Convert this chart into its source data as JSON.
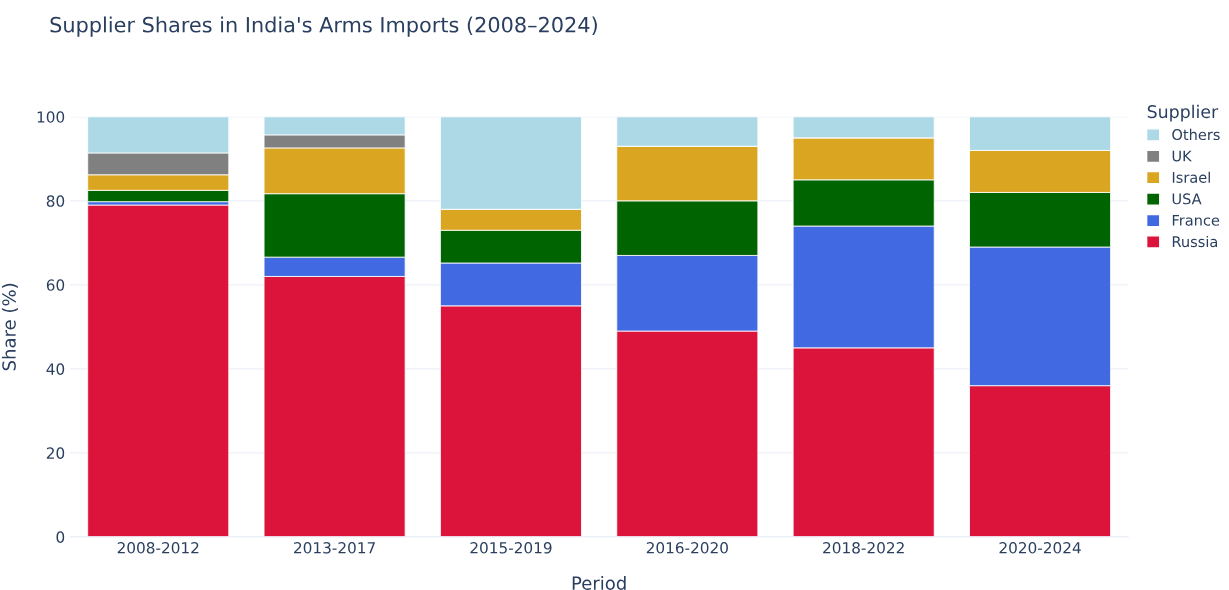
{
  "chart_data": {
    "type": "bar",
    "title": "Supplier Shares in India's Arms Imports (2008–2024)",
    "xlabel": "Period",
    "ylabel": "Share (%)",
    "legend_title": "Supplier",
    "categories": [
      "2008-2012",
      "2013-2017",
      "2015-2019",
      "2016-2020",
      "2018-2022",
      "2020-2024"
    ],
    "stacked": true,
    "series": [
      {
        "name": "Russia",
        "color": "#dc143c",
        "values": [
          79,
          62,
          55,
          49,
          45,
          36
        ]
      },
      {
        "name": "France",
        "color": "#4169e1",
        "values": [
          0.8,
          4.6,
          10.2,
          18,
          29,
          33
        ]
      },
      {
        "name": "USA",
        "color": "#006400",
        "values": [
          2.7,
          15.1,
          7.8,
          13,
          11,
          13
        ]
      },
      {
        "name": "Israel",
        "color": "#daa520",
        "values": [
          3.7,
          10.9,
          5,
          13,
          10,
          10
        ]
      },
      {
        "name": "UK",
        "color": "#808080",
        "values": [
          5.2,
          3.1,
          0,
          0,
          0,
          0
        ]
      },
      {
        "name": "Others",
        "color": "#add8e6",
        "values": [
          8.6,
          4.3,
          22,
          7,
          5,
          8
        ]
      }
    ],
    "ylim": [
      0,
      100
    ],
    "yticks": [
      0,
      20,
      40,
      60,
      80,
      100
    ],
    "grid": "y",
    "legend": "right"
  }
}
